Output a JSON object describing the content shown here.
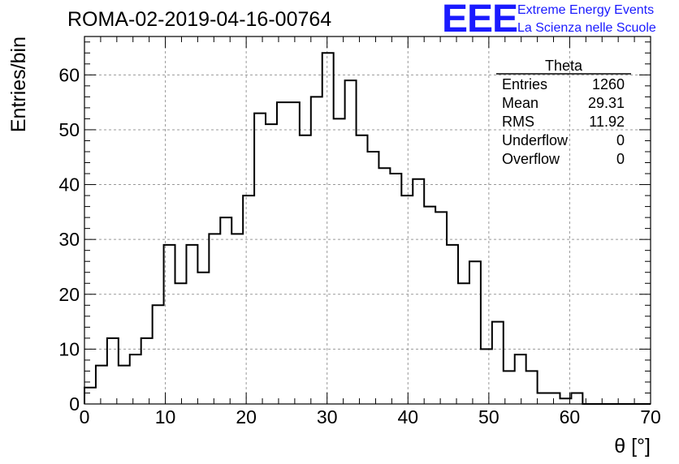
{
  "header": {
    "title": "ROMA-02-2019-04-16-00764",
    "logo": "EEE",
    "logo_line1": "Extreme Energy Events",
    "logo_line2": "La Scienza nelle Scuole"
  },
  "stats_box": {
    "name": "Theta",
    "rows": [
      {
        "label": "Entries",
        "value": "1260"
      },
      {
        "label": "Mean",
        "value": "29.31"
      },
      {
        "label": "RMS",
        "value": "11.92"
      },
      {
        "label": "Underflow",
        "value": "0"
      },
      {
        "label": "Overflow",
        "value": "0"
      }
    ]
  },
  "chart_data": {
    "type": "bar",
    "style": "step-histogram",
    "title": "ROMA-02-2019-04-16-00764",
    "xlabel": "θ [°]",
    "ylabel": "Entries/bin",
    "xlim": [
      0,
      70
    ],
    "ylim": [
      0,
      67
    ],
    "bin_width": 1.4,
    "xticks": [
      0,
      10,
      20,
      30,
      40,
      50,
      60,
      70
    ],
    "yticks": [
      0,
      10,
      20,
      30,
      40,
      50,
      60
    ],
    "grid": true,
    "values": [
      3,
      7,
      12,
      7,
      9,
      12,
      18,
      29,
      22,
      29,
      24,
      31,
      34,
      31,
      38,
      53,
      51,
      55,
      55,
      49,
      56,
      64,
      52,
      59,
      49,
      46,
      43,
      42,
      38,
      41,
      36,
      35,
      29,
      22,
      26,
      10,
      15,
      6,
      9,
      6,
      2,
      2,
      1,
      2,
      0,
      0,
      0,
      0,
      0,
      0
    ],
    "line_color": "#000000",
    "grid_color": "#999999"
  }
}
